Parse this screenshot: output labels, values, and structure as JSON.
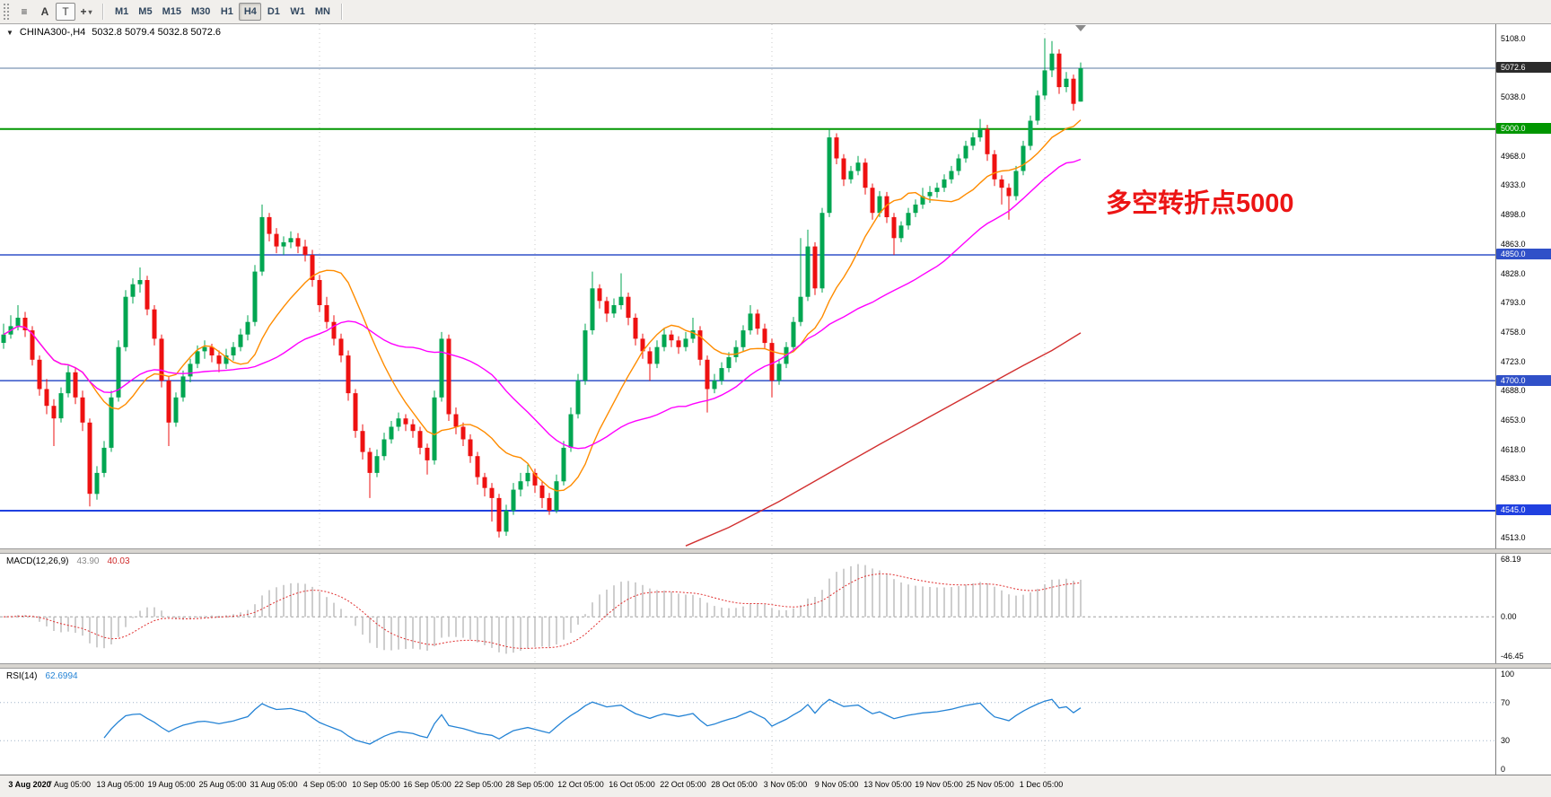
{
  "toolbar": {
    "icons": [
      {
        "name": "chart-list-icon",
        "glyph": "≡",
        "boxed": false,
        "caret": ""
      },
      {
        "name": "cursor-arrow-icon",
        "glyph": "A",
        "boxed": false,
        "caret": ""
      },
      {
        "name": "text-tool-icon",
        "glyph": "T",
        "boxed": true,
        "caret": ""
      },
      {
        "name": "crosshair-tool-icon",
        "glyph": "+",
        "boxed": false,
        "caret": "▾"
      }
    ],
    "timeframes": [
      "M1",
      "M5",
      "M15",
      "M30",
      "H1",
      "H4",
      "D1",
      "W1",
      "MN"
    ],
    "active_timeframe": "H4"
  },
  "chart": {
    "collapse_glyph": "▼",
    "symbol_title": "CHINA300-,H4",
    "ohlc_text": "5032.8 5079.4 5032.8 5072.6",
    "annotation": {
      "text": "多空转折点5000",
      "color": "#ec1515"
    }
  },
  "chart_data": {
    "type": "candlestick",
    "symbol": "CHINA300",
    "timeframe": "H4",
    "title": "CHINA300-,H4 5032.8 5079.4 5032.8 5072.6",
    "price_range": [
      4500,
      5125
    ],
    "up_color": "#00a651",
    "down_color": "#ee1111",
    "axis_ticks": [
      5108.0,
      5038.0,
      4968.0,
      4933.0,
      4898.0,
      4863.0,
      4828.0,
      4793.0,
      4758.0,
      4723.0,
      4688.0,
      4653.0,
      4618.0,
      4583.0,
      4513.0
    ],
    "hlines": [
      {
        "price": 5072.6,
        "color": "#5a78a0",
        "width": 1,
        "label": "5072.6",
        "label_bg": "#2b2b2b"
      },
      {
        "price": 5000.0,
        "color": "#009600",
        "width": 2,
        "label": "5000.0",
        "label_bg": "#009600"
      },
      {
        "price": 4850.0,
        "color": "#3050c8",
        "width": 1.5,
        "label": "4850.0",
        "label_bg": "#3050c8"
      },
      {
        "price": 4700.0,
        "color": "#3050c8",
        "width": 1.5,
        "label": "4700.0",
        "label_bg": "#3050c8"
      },
      {
        "price": 4545.0,
        "color": "#2040e0",
        "width": 2,
        "label": "4545.0",
        "label_bg": "#2040e0"
      }
    ],
    "period_separators": [
      44,
      74,
      107,
      145
    ],
    "moving_averages": [
      {
        "name": "ma-fast",
        "period": 13,
        "color": "#ff8c00"
      },
      {
        "name": "ma-medium",
        "period": 34,
        "color": "#ff00ff"
      },
      {
        "name": "ma-slow",
        "color": "#d23030",
        "points": [
          [
            95,
            4503
          ],
          [
            101,
            4525
          ],
          [
            108,
            4556
          ],
          [
            115,
            4590
          ],
          [
            122,
            4624
          ],
          [
            129,
            4657
          ],
          [
            136,
            4690
          ],
          [
            142,
            4718
          ],
          [
            146,
            4736
          ],
          [
            150,
            4757
          ]
        ]
      }
    ],
    "candles": [
      [
        4745,
        4768,
        4738,
        4755
      ],
      [
        4755,
        4778,
        4750,
        4765
      ],
      [
        4765,
        4790,
        4760,
        4775
      ],
      [
        4775,
        4782,
        4752,
        4760
      ],
      [
        4760,
        4765,
        4718,
        4725
      ],
      [
        4725,
        4730,
        4682,
        4690
      ],
      [
        4690,
        4702,
        4660,
        4670
      ],
      [
        4670,
        4678,
        4622,
        4655
      ],
      [
        4655,
        4692,
        4650,
        4685
      ],
      [
        4685,
        4718,
        4680,
        4710
      ],
      [
        4710,
        4715,
        4672,
        4680
      ],
      [
        4680,
        4688,
        4640,
        4650
      ],
      [
        4650,
        4655,
        4550,
        4565
      ],
      [
        4565,
        4598,
        4558,
        4590
      ],
      [
        4590,
        4628,
        4585,
        4620
      ],
      [
        4620,
        4688,
        4615,
        4680
      ],
      [
        4680,
        4748,
        4675,
        4740
      ],
      [
        4740,
        4808,
        4735,
        4800
      ],
      [
        4800,
        4822,
        4792,
        4815
      ],
      [
        4815,
        4835,
        4805,
        4820
      ],
      [
        4820,
        4825,
        4778,
        4785
      ],
      [
        4785,
        4790,
        4742,
        4750
      ],
      [
        4750,
        4755,
        4692,
        4700
      ],
      [
        4700,
        4705,
        4622,
        4650
      ],
      [
        4650,
        4686,
        4645,
        4680
      ],
      [
        4680,
        4712,
        4675,
        4705
      ],
      [
        4705,
        4726,
        4698,
        4720
      ],
      [
        4720,
        4742,
        4715,
        4735
      ],
      [
        4735,
        4748,
        4726,
        4740
      ],
      [
        4740,
        4744,
        4722,
        4730
      ],
      [
        4730,
        4736,
        4710,
        4720
      ],
      [
        4720,
        4738,
        4714,
        4730
      ],
      [
        4730,
        4746,
        4724,
        4740
      ],
      [
        4740,
        4762,
        4735,
        4755
      ],
      [
        4755,
        4778,
        4748,
        4770
      ],
      [
        4770,
        4838,
        4765,
        4830
      ],
      [
        4830,
        4910,
        4825,
        4895
      ],
      [
        4895,
        4900,
        4866,
        4875
      ],
      [
        4875,
        4882,
        4852,
        4860
      ],
      [
        4860,
        4872,
        4850,
        4865
      ],
      [
        4865,
        4878,
        4858,
        4870
      ],
      [
        4870,
        4876,
        4852,
        4860
      ],
      [
        4860,
        4868,
        4842,
        4850
      ],
      [
        4850,
        4856,
        4812,
        4820
      ],
      [
        4820,
        4826,
        4782,
        4790
      ],
      [
        4790,
        4800,
        4762,
        4770
      ],
      [
        4770,
        4778,
        4742,
        4750
      ],
      [
        4750,
        4756,
        4722,
        4730
      ],
      [
        4730,
        4736,
        4676,
        4685
      ],
      [
        4685,
        4690,
        4632,
        4640
      ],
      [
        4640,
        4648,
        4606,
        4615
      ],
      [
        4615,
        4620,
        4560,
        4590
      ],
      [
        4590,
        4618,
        4585,
        4610
      ],
      [
        4610,
        4638,
        4605,
        4630
      ],
      [
        4630,
        4652,
        4625,
        4645
      ],
      [
        4645,
        4662,
        4640,
        4655
      ],
      [
        4655,
        4660,
        4640,
        4648
      ],
      [
        4648,
        4654,
        4632,
        4640
      ],
      [
        4640,
        4645,
        4612,
        4620
      ],
      [
        4620,
        4625,
        4588,
        4605
      ],
      [
        4605,
        4688,
        4600,
        4680
      ],
      [
        4680,
        4758,
        4675,
        4750
      ],
      [
        4750,
        4755,
        4652,
        4660
      ],
      [
        4660,
        4668,
        4636,
        4645
      ],
      [
        4645,
        4650,
        4622,
        4630
      ],
      [
        4630,
        4636,
        4602,
        4610
      ],
      [
        4610,
        4615,
        4576,
        4585
      ],
      [
        4585,
        4590,
        4562,
        4572
      ],
      [
        4572,
        4578,
        4532,
        4560
      ],
      [
        4560,
        4565,
        4513,
        4520
      ],
      [
        4520,
        4552,
        4515,
        4545
      ],
      [
        4545,
        4578,
        4540,
        4570
      ],
      [
        4570,
        4590,
        4562,
        4580
      ],
      [
        4580,
        4600,
        4574,
        4590
      ],
      [
        4590,
        4595,
        4566,
        4575
      ],
      [
        4575,
        4580,
        4548,
        4560
      ],
      [
        4560,
        4566,
        4540,
        4545
      ],
      [
        4545,
        4588,
        4542,
        4580
      ],
      [
        4580,
        4628,
        4575,
        4620
      ],
      [
        4620,
        4668,
        4615,
        4660
      ],
      [
        4660,
        4708,
        4655,
        4700
      ],
      [
        4700,
        4768,
        4695,
        4760
      ],
      [
        4760,
        4830,
        4755,
        4810
      ],
      [
        4810,
        4815,
        4786,
        4795
      ],
      [
        4795,
        4800,
        4770,
        4780
      ],
      [
        4780,
        4798,
        4775,
        4790
      ],
      [
        4790,
        4828,
        4785,
        4800
      ],
      [
        4800,
        4805,
        4766,
        4775
      ],
      [
        4775,
        4780,
        4742,
        4750
      ],
      [
        4750,
        4756,
        4726,
        4735
      ],
      [
        4735,
        4740,
        4700,
        4720
      ],
      [
        4720,
        4748,
        4715,
        4740
      ],
      [
        4740,
        4762,
        4735,
        4755
      ],
      [
        4755,
        4760,
        4740,
        4748
      ],
      [
        4748,
        4753,
        4732,
        4740
      ],
      [
        4740,
        4758,
        4735,
        4750
      ],
      [
        4750,
        4775,
        4745,
        4760
      ],
      [
        4760,
        4765,
        4718,
        4725
      ],
      [
        4725,
        4730,
        4662,
        4690
      ],
      [
        4690,
        4708,
        4685,
        4700
      ],
      [
        4700,
        4722,
        4695,
        4715
      ],
      [
        4715,
        4734,
        4710,
        4728
      ],
      [
        4728,
        4748,
        4722,
        4740
      ],
      [
        4740,
        4766,
        4735,
        4760
      ],
      [
        4760,
        4790,
        4755,
        4780
      ],
      [
        4780,
        4785,
        4755,
        4762
      ],
      [
        4762,
        4768,
        4738,
        4745
      ],
      [
        4745,
        4750,
        4680,
        4700
      ],
      [
        4700,
        4726,
        4695,
        4720
      ],
      [
        4720,
        4746,
        4715,
        4740
      ],
      [
        4740,
        4776,
        4735,
        4770
      ],
      [
        4770,
        4870,
        4765,
        4800
      ],
      [
        4800,
        4880,
        4795,
        4860
      ],
      [
        4860,
        4865,
        4802,
        4810
      ],
      [
        4810,
        4906,
        4805,
        4900
      ],
      [
        4900,
        5000,
        4895,
        4990
      ],
      [
        4990,
        4995,
        4958,
        4965
      ],
      [
        4965,
        4970,
        4932,
        4940
      ],
      [
        4940,
        4956,
        4935,
        4950
      ],
      [
        4950,
        4968,
        4945,
        4960
      ],
      [
        4960,
        4965,
        4922,
        4930
      ],
      [
        4930,
        4935,
        4892,
        4900
      ],
      [
        4900,
        4926,
        4895,
        4920
      ],
      [
        4920,
        4925,
        4888,
        4895
      ],
      [
        4895,
        4900,
        4850,
        4870
      ],
      [
        4870,
        4890,
        4865,
        4885
      ],
      [
        4885,
        4906,
        4880,
        4900
      ],
      [
        4900,
        4916,
        4895,
        4910
      ],
      [
        4910,
        4930,
        4905,
        4920
      ],
      [
        4920,
        4932,
        4912,
        4925
      ],
      [
        4925,
        4936,
        4918,
        4930
      ],
      [
        4930,
        4946,
        4925,
        4940
      ],
      [
        4940,
        4956,
        4935,
        4950
      ],
      [
        4950,
        4970,
        4945,
        4965
      ],
      [
        4965,
        4986,
        4960,
        4980
      ],
      [
        4980,
        4996,
        4975,
        4990
      ],
      [
        4990,
        5012,
        4985,
        5000
      ],
      [
        5000,
        5005,
        4962,
        4970
      ],
      [
        4970,
        4975,
        4932,
        4940
      ],
      [
        4940,
        4945,
        4910,
        4930
      ],
      [
        4930,
        4935,
        4892,
        4920
      ],
      [
        4920,
        4956,
        4915,
        4950
      ],
      [
        4950,
        4986,
        4945,
        4980
      ],
      [
        4980,
        5016,
        4975,
        5010
      ],
      [
        5010,
        5046,
        5005,
        5040
      ],
      [
        5040,
        5108,
        5035,
        5070
      ],
      [
        5070,
        5105,
        5062,
        5090
      ],
      [
        5090,
        5095,
        5042,
        5050
      ],
      [
        5050,
        5068,
        5044,
        5060
      ],
      [
        5060,
        5065,
        5022,
        5030
      ],
      [
        5032.8,
        5079.4,
        5032.8,
        5072.6
      ]
    ],
    "time_labels": [
      "3 Aug 2020",
      "7 Aug 05:00",
      "13 Aug 05:00",
      "19 Aug 05:00",
      "25 Aug 05:00",
      "31 Aug 05:00",
      "4 Sep 05:00",
      "10 Sep 05:00",
      "16 Sep 05:00",
      "22 Sep 05:00",
      "28 Sep 05:00",
      "12 Oct 05:00",
      "16 Oct 05:00",
      "22 Oct 05:00",
      "28 Oct 05:00",
      "3 Nov 05:00",
      "9 Nov 05:00",
      "13 Nov 05:00",
      "19 Nov 05:00",
      "25 Nov 05:00",
      "1 Dec 05:00"
    ],
    "indicators": {
      "macd": {
        "label": "MACD(12,26,9)",
        "value_main": "43.90",
        "value_signal": "40.03",
        "params": [
          12,
          26,
          9
        ],
        "range": [
          -46.45,
          68.19
        ],
        "axis": [
          {
            "label": "68.19",
            "value": 68.19
          },
          {
            "label": "0.00",
            "value": 0
          },
          {
            "label": "-46.45",
            "value": -46.45
          }
        ],
        "hist_color": "#b9b9b9",
        "signal_color": "#e03030"
      },
      "rsi": {
        "label": "RSI(14)",
        "value": "62.6994",
        "period": 14,
        "range": [
          0,
          100
        ],
        "levels": [
          70,
          30
        ],
        "axis": [
          {
            "label": "100",
            "value": 100
          },
          {
            "label": "70",
            "value": 70
          },
          {
            "label": "30",
            "value": 30
          },
          {
            "label": "0",
            "value": 0
          }
        ],
        "line_color": "#2483d5",
        "level_color": "#9fb4c8"
      }
    }
  }
}
